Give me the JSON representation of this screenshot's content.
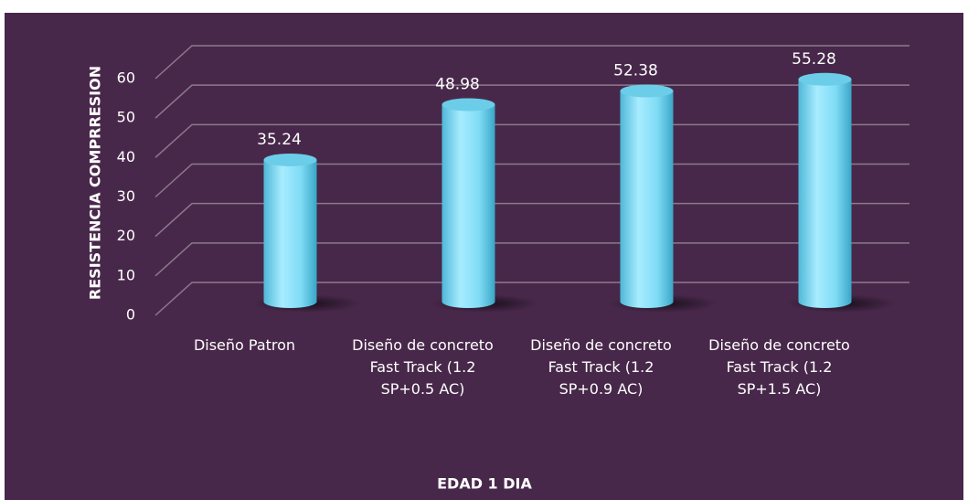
{
  "chart_data": {
    "type": "bar3d",
    "categories": [
      "Diseño Patron",
      "Diseño de concreto Fast Track (1.2 SP+0.5 AC)",
      "Diseño de concreto Fast Track (1.2 SP+0.9 AC)",
      "Diseño de concreto Fast Track (1.2 SP+1.5 AC)"
    ],
    "values": [
      35.24,
      48.98,
      52.38,
      55.28
    ],
    "ylim": [
      0,
      60
    ],
    "yticks": [
      0,
      10,
      20,
      30,
      40,
      50,
      60
    ],
    "y_label": "RESISTENCIA COMPRRESION",
    "x_label": "EDAD 1 DIA",
    "color": "#7fdcf5",
    "grid": true
  }
}
